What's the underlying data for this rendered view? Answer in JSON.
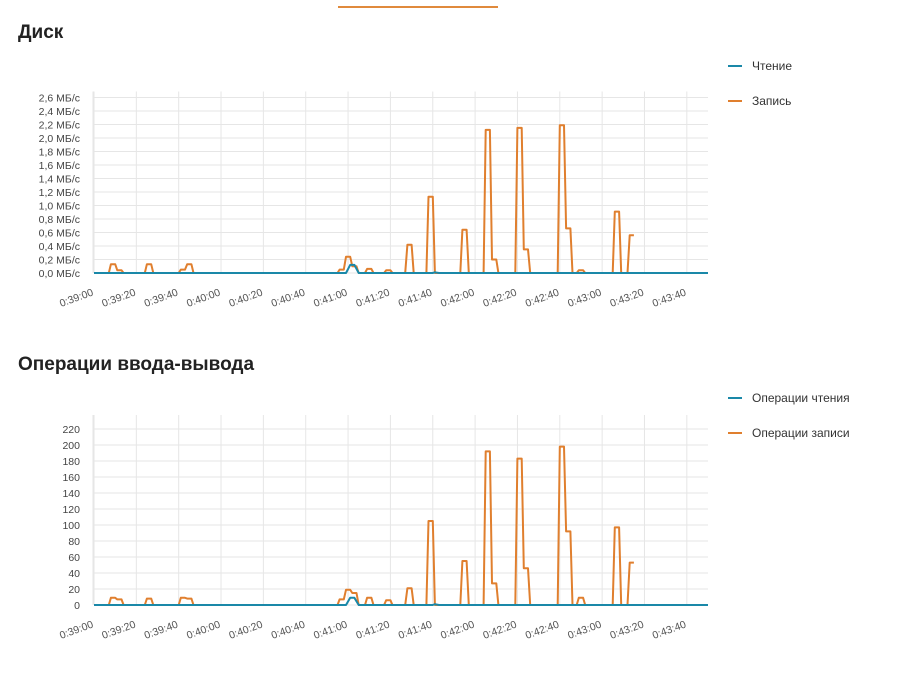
{
  "colors": {
    "read": "#1a88a8",
    "write": "#e07f2e",
    "grid": "#e6e6e6",
    "axis": "#bdbdbd"
  },
  "chart_data": [
    {
      "type": "line",
      "title": "Диск",
      "xlabel": "",
      "ylabel": "",
      "grid": true,
      "legend": "right",
      "ylim": [
        0,
        2.6
      ],
      "yticks": [
        "0,0 МБ/с",
        "0,2 МБ/с",
        "0,4 МБ/с",
        "0,6 МБ/с",
        "0,8 МБ/с",
        "1,0 МБ/с",
        "1,2 МБ/с",
        "1,4 МБ/с",
        "1,6 МБ/с",
        "1,8 МБ/с",
        "2,0 МБ/с",
        "2,2 МБ/с",
        "2,4 МБ/с",
        "2,6 МБ/с"
      ],
      "xticks": [
        "0:39:00",
        "0:39:20",
        "0:39:40",
        "0:40:00",
        "0:40:20",
        "0:40:40",
        "0:41:00",
        "0:41:20",
        "0:41:40",
        "0:42:00",
        "0:42:20",
        "0:42:40",
        "0:43:00",
        "0:43:20",
        "0:43:40"
      ],
      "xlim": [
        "0:39:00",
        "0:43:50"
      ],
      "series": [
        {
          "name": "Чтение",
          "color": "#1a88a8",
          "points": [
            [
              "0:39:00",
              0
            ],
            [
              "0:40:59",
              0
            ],
            [
              "0:41:01",
              0.12
            ],
            [
              "0:41:03",
              0.12
            ],
            [
              "0:41:05",
              0
            ],
            [
              "0:41:40",
              0
            ],
            [
              "0:41:41",
              0.01
            ],
            [
              "0:41:43",
              0
            ],
            [
              "0:43:50",
              0
            ]
          ]
        },
        {
          "name": "Запись",
          "color": "#e07f2e",
          "points": [
            [
              "0:39:00",
              0
            ],
            [
              "0:39:07",
              0
            ],
            [
              "0:39:08",
              0.13
            ],
            [
              "0:39:10",
              0.13
            ],
            [
              "0:39:11",
              0.04
            ],
            [
              "0:39:13",
              0.04
            ],
            [
              "0:39:14",
              0
            ],
            [
              "0:39:24",
              0
            ],
            [
              "0:39:25",
              0.13
            ],
            [
              "0:39:27",
              0.13
            ],
            [
              "0:39:28",
              0
            ],
            [
              "0:39:40",
              0
            ],
            [
              "0:39:41",
              0.05
            ],
            [
              "0:39:43",
              0.05
            ],
            [
              "0:39:44",
              0.13
            ],
            [
              "0:39:46",
              0.13
            ],
            [
              "0:39:47",
              0
            ],
            [
              "0:40:55",
              0
            ],
            [
              "0:40:56",
              0.05
            ],
            [
              "0:40:58",
              0.05
            ],
            [
              "0:40:59",
              0.24
            ],
            [
              "0:41:01",
              0.24
            ],
            [
              "0:41:02",
              0.1
            ],
            [
              "0:41:04",
              0.1
            ],
            [
              "0:41:05",
              0
            ],
            [
              "0:41:08",
              0
            ],
            [
              "0:41:09",
              0.06
            ],
            [
              "0:41:11",
              0.06
            ],
            [
              "0:41:12",
              0
            ],
            [
              "0:41:17",
              0
            ],
            [
              "0:41:18",
              0.04
            ],
            [
              "0:41:20",
              0.04
            ],
            [
              "0:41:21",
              0
            ],
            [
              "0:41:27",
              0
            ],
            [
              "0:41:28",
              0.42
            ],
            [
              "0:41:30",
              0.42
            ],
            [
              "0:41:31",
              0
            ],
            [
              "0:41:37",
              0
            ],
            [
              "0:41:38",
              1.13
            ],
            [
              "0:41:40",
              1.13
            ],
            [
              "0:41:41",
              0
            ],
            [
              "0:41:53",
              0
            ],
            [
              "0:41:54",
              0.64
            ],
            [
              "0:41:56",
              0.64
            ],
            [
              "0:41:57",
              0
            ],
            [
              "0:42:04",
              0
            ],
            [
              "0:42:05",
              2.12
            ],
            [
              "0:42:07",
              2.12
            ],
            [
              "0:42:08",
              0.2
            ],
            [
              "0:42:10",
              0.2
            ],
            [
              "0:42:11",
              0
            ],
            [
              "0:42:19",
              0
            ],
            [
              "0:42:20",
              2.15
            ],
            [
              "0:42:22",
              2.15
            ],
            [
              "0:42:23",
              0.35
            ],
            [
              "0:42:25",
              0.35
            ],
            [
              "0:42:26",
              0
            ],
            [
              "0:42:39",
              0
            ],
            [
              "0:42:40",
              2.19
            ],
            [
              "0:42:42",
              2.19
            ],
            [
              "0:42:43",
              0.66
            ],
            [
              "0:42:45",
              0.66
            ],
            [
              "0:42:46",
              0
            ],
            [
              "0:42:48",
              0
            ],
            [
              "0:42:49",
              0.04
            ],
            [
              "0:42:51",
              0.04
            ],
            [
              "0:42:52",
              0
            ],
            [
              "0:43:05",
              0
            ],
            [
              "0:43:06",
              0.91
            ],
            [
              "0:43:08",
              0.91
            ],
            [
              "0:43:09",
              0
            ],
            [
              "0:43:12",
              0
            ],
            [
              "0:43:13",
              0.56
            ],
            [
              "0:43:15",
              0.56
            ]
          ]
        }
      ]
    },
    {
      "type": "line",
      "title": "Операции ввода-вывода",
      "xlabel": "",
      "ylabel": "",
      "grid": true,
      "legend": "right",
      "ylim": [
        0,
        230
      ],
      "yticks": [
        "0",
        "20",
        "40",
        "60",
        "80",
        "100",
        "120",
        "140",
        "160",
        "180",
        "200",
        "220"
      ],
      "xticks": [
        "0:39:00",
        "0:39:20",
        "0:39:40",
        "0:40:00",
        "0:40:20",
        "0:40:40",
        "0:41:00",
        "0:41:20",
        "0:41:40",
        "0:42:00",
        "0:42:20",
        "0:42:40",
        "0:43:00",
        "0:43:20",
        "0:43:40"
      ],
      "xlim": [
        "0:39:00",
        "0:43:50"
      ],
      "series": [
        {
          "name": "Операции чтения",
          "color": "#1a88a8",
          "points": [
            [
              "0:39:00",
              0
            ],
            [
              "0:40:59",
              0
            ],
            [
              "0:41:01",
              9
            ],
            [
              "0:41:03",
              9
            ],
            [
              "0:41:05",
              0
            ],
            [
              "0:41:40",
              0
            ],
            [
              "0:41:41",
              1
            ],
            [
              "0:41:43",
              0
            ],
            [
              "0:43:50",
              0
            ]
          ]
        },
        {
          "name": "Операции записи",
          "color": "#e07f2e",
          "points": [
            [
              "0:39:00",
              0
            ],
            [
              "0:39:07",
              0
            ],
            [
              "0:39:08",
              9
            ],
            [
              "0:39:10",
              9
            ],
            [
              "0:39:11",
              7
            ],
            [
              "0:39:13",
              7
            ],
            [
              "0:39:14",
              0
            ],
            [
              "0:39:24",
              0
            ],
            [
              "0:39:25",
              8
            ],
            [
              "0:39:27",
              8
            ],
            [
              "0:39:28",
              0
            ],
            [
              "0:39:40",
              0
            ],
            [
              "0:39:41",
              9
            ],
            [
              "0:39:43",
              9
            ],
            [
              "0:39:44",
              8
            ],
            [
              "0:39:46",
              8
            ],
            [
              "0:39:47",
              0
            ],
            [
              "0:40:55",
              0
            ],
            [
              "0:40:56",
              7
            ],
            [
              "0:40:58",
              7
            ],
            [
              "0:40:59",
              19
            ],
            [
              "0:41:01",
              19
            ],
            [
              "0:41:02",
              15
            ],
            [
              "0:41:04",
              15
            ],
            [
              "0:41:05",
              0
            ],
            [
              "0:41:08",
              0
            ],
            [
              "0:41:09",
              9
            ],
            [
              "0:41:11",
              9
            ],
            [
              "0:41:12",
              0
            ],
            [
              "0:41:17",
              0
            ],
            [
              "0:41:18",
              6
            ],
            [
              "0:41:20",
              6
            ],
            [
              "0:41:21",
              0
            ],
            [
              "0:41:27",
              0
            ],
            [
              "0:41:28",
              21
            ],
            [
              "0:41:30",
              21
            ],
            [
              "0:41:31",
              0
            ],
            [
              "0:41:37",
              0
            ],
            [
              "0:41:38",
              105
            ],
            [
              "0:41:40",
              105
            ],
            [
              "0:41:41",
              0
            ],
            [
              "0:41:53",
              0
            ],
            [
              "0:41:54",
              55
            ],
            [
              "0:41:56",
              55
            ],
            [
              "0:41:57",
              0
            ],
            [
              "0:42:04",
              0
            ],
            [
              "0:42:05",
              192
            ],
            [
              "0:42:07",
              192
            ],
            [
              "0:42:08",
              27
            ],
            [
              "0:42:10",
              27
            ],
            [
              "0:42:11",
              0
            ],
            [
              "0:42:19",
              0
            ],
            [
              "0:42:20",
              183
            ],
            [
              "0:42:22",
              183
            ],
            [
              "0:42:23",
              46
            ],
            [
              "0:42:25",
              46
            ],
            [
              "0:42:26",
              0
            ],
            [
              "0:42:39",
              0
            ],
            [
              "0:42:40",
              198
            ],
            [
              "0:42:42",
              198
            ],
            [
              "0:42:43",
              92
            ],
            [
              "0:42:45",
              92
            ],
            [
              "0:42:46",
              0
            ],
            [
              "0:42:48",
              0
            ],
            [
              "0:42:49",
              9
            ],
            [
              "0:42:51",
              9
            ],
            [
              "0:42:52",
              0
            ],
            [
              "0:43:05",
              0
            ],
            [
              "0:43:06",
              97
            ],
            [
              "0:43:08",
              97
            ],
            [
              "0:43:09",
              0
            ],
            [
              "0:43:12",
              0
            ],
            [
              "0:43:13",
              53
            ],
            [
              "0:43:15",
              53
            ]
          ]
        }
      ]
    }
  ]
}
